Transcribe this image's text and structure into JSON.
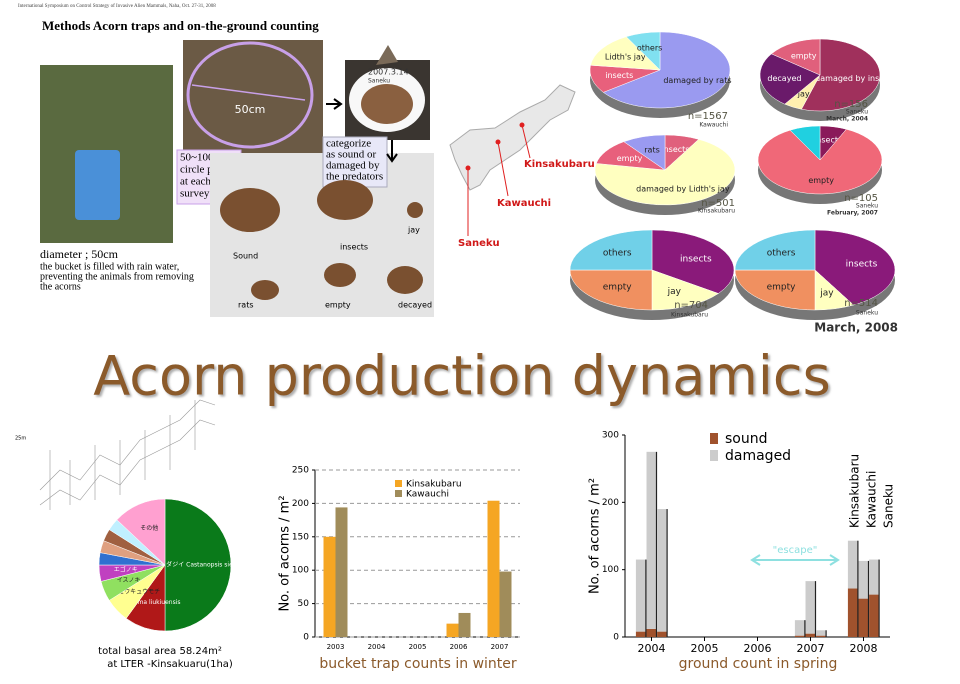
{
  "header": "International Symposium on Control Strategy of Invasive Alien Mammals, Naha, Oct. 27-31, 2008",
  "methods": {
    "title": "Methods   Acorn traps and on-the-ground counting",
    "plot_size": "50cm",
    "plot_note": [
      "50~100",
      "circle plots",
      "at each",
      "survey site"
    ],
    "photo_date": "2007.3.14",
    "photo_site": "Saneku",
    "categorize": [
      "categorize",
      "as sound or",
      "damaged by",
      "the predators"
    ],
    "acorn_types": [
      "Sound",
      "insects",
      "jay",
      "rats",
      "empty",
      "decayed"
    ],
    "caption": [
      "diameter ; 50cm",
      "the bucket is filled with rain water,",
      "preventing the animals from removing",
      "the acorns"
    ]
  },
  "map": {
    "sites": [
      "Kinsakubaru",
      "Kawauchi",
      "Saneku"
    ]
  },
  "title": "Acorn production dynamics",
  "profile_scale": "25m",
  "chart_data": [
    {
      "type": "pie",
      "categories": [
        "damaged by rats",
        "insects",
        "Lidth's jay",
        "others"
      ],
      "values": [
        65,
        12,
        15,
        8
      ],
      "colors": [
        "#9a9af0",
        "#e8607c",
        "#ffffc0",
        "#80e0f0"
      ],
      "n_label": "n=1567",
      "site": "Kawauchi"
    },
    {
      "type": "pie",
      "categories": [
        "damaged by insects",
        "jay",
        "decayed",
        "empty"
      ],
      "values": [
        55,
        5,
        25,
        15
      ],
      "colors": [
        "#a0305c",
        "#fff0b0",
        "#6a1a6a",
        "#e0607c"
      ],
      "n_label": "n=156",
      "site": "Saneku",
      "date": "March, 2004"
    },
    {
      "type": "pie",
      "categories": [
        "insects",
        "damaged by Lidth's jay",
        "empty",
        "rats"
      ],
      "values": [
        8,
        70,
        12,
        10
      ],
      "colors": [
        "#e0607c",
        "#ffffc0",
        "#e8607c",
        "#9a9af0"
      ],
      "n_label": "n=501",
      "site": "Kinsakubaru"
    },
    {
      "type": "pie",
      "categories": [
        "insects",
        "empty",
        null
      ],
      "values": [
        7,
        85,
        8
      ],
      "colors": [
        "#8a1a5a",
        "#f06878",
        "#20d0e0"
      ],
      "n_label": "n=105",
      "site": "Saneku",
      "date": "February, 2007"
    },
    {
      "type": "pie",
      "categories": [
        "insects",
        "jay",
        "empty",
        "others"
      ],
      "values": [
        35,
        15,
        25,
        25
      ],
      "colors": [
        "#8a1a7a",
        "#ffffc0",
        "#f09060",
        "#70d0e8"
      ],
      "n_label": "n=704",
      "site": "Kinsakubaru"
    },
    {
      "type": "pie",
      "categories": [
        "insects",
        "jay",
        "empty",
        "others"
      ],
      "values": [
        42,
        8,
        25,
        25
      ],
      "colors": [
        "#8a1a7a",
        "#ffffc0",
        "#f09060",
        "#70d0e8"
      ],
      "n_label": "n=514",
      "site": "Saneku",
      "date": "March, 2008"
    },
    {
      "type": "pie",
      "categories": [
        "スダジイ Castanopsis sieboldii",
        "Schima liukiuensis",
        "リュウキュウモチ",
        "イスノキ",
        "エゴノキ",
        null,
        null,
        null,
        null,
        "その他"
      ],
      "values": [
        50,
        10,
        6,
        5,
        4,
        3,
        3,
        3,
        3,
        13
      ],
      "colors": [
        "#0a7a1a",
        "#b01818",
        "#ffff90",
        "#90e060",
        "#c040c0",
        "#3070d0",
        "#e0a080",
        "#a06040",
        "#c0f0ff",
        "#ffa0d0"
      ],
      "caption": [
        "total basal area 58.24m²",
        "at  LTER -Kinsakuaru(1ha)"
      ]
    },
    {
      "type": "bar",
      "title": "bucket trap counts in winter",
      "ylabel": "No. of acorns / m²",
      "categories": [
        "2003",
        "2004",
        "2005",
        "2006",
        "2007"
      ],
      "series": [
        {
          "name": "Kinsakubaru",
          "color": "#f5a623",
          "values": [
            150,
            null,
            null,
            20,
            204
          ]
        },
        {
          "name": "Kawauchi",
          "color": "#a08c5a",
          "values": [
            194,
            null,
            null,
            36,
            98
          ]
        }
      ],
      "ylim": [
        0,
        250
      ],
      "yticks": [
        0,
        50,
        100,
        150,
        200,
        250
      ],
      "grid": true
    },
    {
      "type": "stacked_bar",
      "title": "ground count in spring",
      "ylabel": "No. of acorns / m²",
      "x": [
        2003.8,
        2004.0,
        2004.2,
        2006.8,
        2007.0,
        2007.2,
        2007.8,
        2008.0,
        2008.2
      ],
      "series": [
        {
          "name": "sound",
          "color": "#a0522d",
          "values": [
            8,
            12,
            8,
            2,
            5,
            2,
            72,
            57,
            63
          ]
        },
        {
          "name": "damaged",
          "color": "#cccccc",
          "values": [
            107,
            263,
            182,
            23,
            78,
            8,
            71,
            56,
            52
          ]
        }
      ],
      "xlim": [
        2003.5,
        2008.5
      ],
      "xticks": [
        2004,
        2005,
        2006,
        2007,
        2008
      ],
      "ylim": [
        0,
        300
      ],
      "yticks": [
        0,
        100,
        200,
        300
      ],
      "annotation": "\"escape\"",
      "bar_labels": [
        "Kinsakubaru",
        "Kawauchi",
        "Saneku"
      ]
    }
  ]
}
